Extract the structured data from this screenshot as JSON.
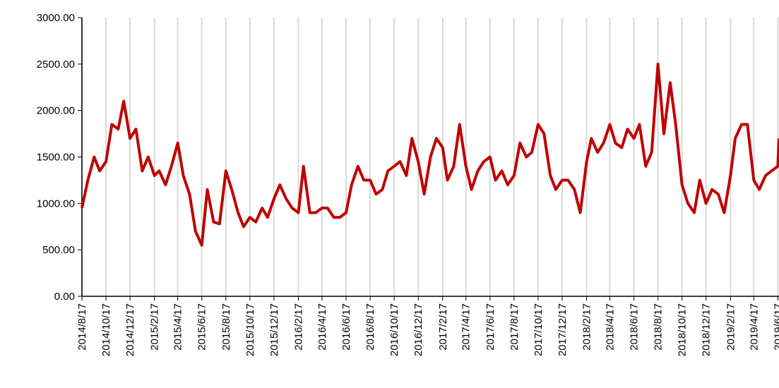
{
  "chart_data": {
    "type": "line",
    "x": [
      "2014/8/17",
      "2014/9/1",
      "2014/9/17",
      "2014/10/1",
      "2014/10/17",
      "2014/11/1",
      "2014/11/17",
      "2014/12/1",
      "2014/12/17",
      "2015/1/1",
      "2015/1/17",
      "2015/2/1",
      "2015/2/17",
      "2015/3/1",
      "2015/3/17",
      "2015/4/1",
      "2015/4/17",
      "2015/5/1",
      "2015/5/17",
      "2015/6/1",
      "2015/6/17",
      "2015/7/1",
      "2015/7/17",
      "2015/8/1",
      "2015/8/17",
      "2015/9/1",
      "2015/9/17",
      "2015/10/1",
      "2015/10/17",
      "2015/11/1",
      "2015/11/17",
      "2015/12/1",
      "2015/12/17",
      "2016/1/1",
      "2016/1/17",
      "2016/2/1",
      "2016/2/17",
      "2016/3/1",
      "2016/3/17",
      "2016/4/1",
      "2016/4/17",
      "2016/5/1",
      "2016/5/17",
      "2016/6/1",
      "2016/6/17",
      "2016/7/1",
      "2016/7/17",
      "2016/8/1",
      "2016/8/17",
      "2016/9/1",
      "2016/9/17",
      "2016/10/1",
      "2016/10/17",
      "2016/11/1",
      "2016/11/17",
      "2016/12/1",
      "2016/12/17",
      "2017/1/1",
      "2017/1/17",
      "2017/2/1",
      "2017/2/17",
      "2017/3/1",
      "2017/3/17",
      "2017/4/1",
      "2017/4/17",
      "2017/5/1",
      "2017/5/17",
      "2017/6/1",
      "2017/6/17",
      "2017/7/1",
      "2017/7/17",
      "2017/8/1",
      "2017/8/17",
      "2017/9/1",
      "2017/9/17",
      "2017/10/1",
      "2017/10/17",
      "2017/11/1",
      "2017/11/17",
      "2017/12/1",
      "2017/12/17",
      "2018/1/1",
      "2018/1/17",
      "2018/2/1",
      "2018/2/17",
      "2018/3/1",
      "2018/3/17",
      "2018/4/1",
      "2018/4/17",
      "2018/5/1",
      "2018/5/17",
      "2018/6/1",
      "2018/6/17",
      "2018/7/1",
      "2018/7/17",
      "2018/8/1",
      "2018/8/17",
      "2018/9/1",
      "2018/9/17",
      "2018/10/1",
      "2018/10/17",
      "2018/11/1",
      "2018/11/17",
      "2018/12/1",
      "2018/12/17",
      "2019/1/1",
      "2019/1/17",
      "2019/2/1",
      "2019/2/17",
      "2019/3/1",
      "2019/3/17",
      "2019/4/1",
      "2019/4/17",
      "2019/5/1",
      "2019/5/17",
      "2019/6/1",
      "2019/6/17",
      "2019/6/20"
    ],
    "series": [
      {
        "color": "#c00000",
        "values": [
          950,
          1250,
          1500,
          1350,
          1450,
          1850,
          1800,
          2100,
          1700,
          1800,
          1350,
          1500,
          1300,
          1350,
          1200,
          1400,
          1650,
          1300,
          1100,
          700,
          550,
          1150,
          800,
          780,
          1350,
          1150,
          900,
          750,
          850,
          800,
          950,
          850,
          1050,
          1200,
          1050,
          950,
          900,
          1400,
          900,
          900,
          950,
          950,
          850,
          850,
          900,
          1200,
          1400,
          1250,
          1250,
          1100,
          1150,
          1350,
          1400,
          1450,
          1300,
          1700,
          1450,
          1100,
          1500,
          1700,
          1600,
          1250,
          1400,
          1850,
          1400,
          1150,
          1350,
          1450,
          1500,
          1250,
          1350,
          1200,
          1300,
          1650,
          1500,
          1550,
          1850,
          1750,
          1300,
          1150,
          1250,
          1250,
          1150,
          900,
          1450,
          1700,
          1550,
          1650,
          1850,
          1650,
          1600,
          1800,
          1700,
          1850,
          1400,
          1550,
          2500,
          1750,
          2300,
          1850,
          1200,
          1000,
          900,
          1250,
          1000,
          1150,
          1100,
          900,
          1300,
          1700,
          1850,
          1850,
          1250,
          1150,
          1300,
          1350,
          1400,
          1700
        ]
      }
    ],
    "xlim": [
      "2014/8/17",
      "2019/6/20"
    ],
    "xticks": [
      "2014/8/17",
      "2014/10/17",
      "2014/12/17",
      "2015/2/17",
      "2015/4/17",
      "2015/6/17",
      "2015/8/17",
      "2015/10/17",
      "2015/12/17",
      "2016/2/17",
      "2016/4/17",
      "2016/6/17",
      "2016/8/17",
      "2016/10/17",
      "2016/12/17",
      "2017/2/17",
      "2017/4/17",
      "2017/6/17",
      "2017/8/17",
      "2017/10/17",
      "2017/12/17",
      "2018/2/17",
      "2018/4/17",
      "2018/6/17",
      "2018/8/17",
      "2018/10/17",
      "2018/12/17",
      "2019/2/17",
      "2019/4/17",
      "2019/6/17"
    ],
    "ylim": [
      0,
      3000
    ],
    "yticks": [
      {
        "value": 0,
        "label": "0.00"
      },
      {
        "value": 500,
        "label": "500.00"
      },
      {
        "value": 1000,
        "label": "1000.00"
      },
      {
        "value": 1500,
        "label": "1500.00"
      },
      {
        "value": 2000,
        "label": "2000.00"
      },
      {
        "value": 2500,
        "label": "2500.00"
      },
      {
        "value": 3000,
        "label": "3000.00"
      }
    ],
    "grid": true
  }
}
